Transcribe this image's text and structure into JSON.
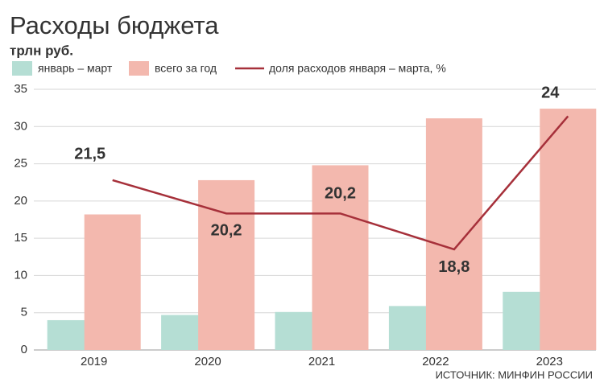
{
  "chart_data": {
    "type": "bar",
    "title": "Расходы бюджета",
    "y_label": "трлн руб.",
    "source": "ИСТОЧНИК: МИНФИН РОССИИ",
    "categories": [
      "2019",
      "2020",
      "2021",
      "2022",
      "2023"
    ],
    "series": [
      {
        "name": "январь – март",
        "type": "bar",
        "color": "#b5ded4",
        "values": [
          4.0,
          4.7,
          5.1,
          5.9,
          7.8
        ]
      },
      {
        "name": "всего за год",
        "type": "bar",
        "color": "#f3b8ae",
        "values": [
          18.2,
          22.8,
          24.8,
          31.1,
          32.4
        ]
      },
      {
        "name": "доля расходов января – марта, %",
        "type": "line",
        "axis": "y2",
        "color": "#a6303a",
        "values": [
          21.5,
          20.2,
          20.2,
          18.8,
          24
        ],
        "value_labels": [
          "21,5",
          "20,2",
          "20,2",
          "18,8",
          "24"
        ]
      }
    ],
    "ylim": [
      0,
      35
    ],
    "yticks": [
      0,
      5,
      10,
      15,
      20,
      25,
      30,
      35
    ],
    "y2lim": [
      14.87,
      25.05
    ],
    "grid": true
  }
}
